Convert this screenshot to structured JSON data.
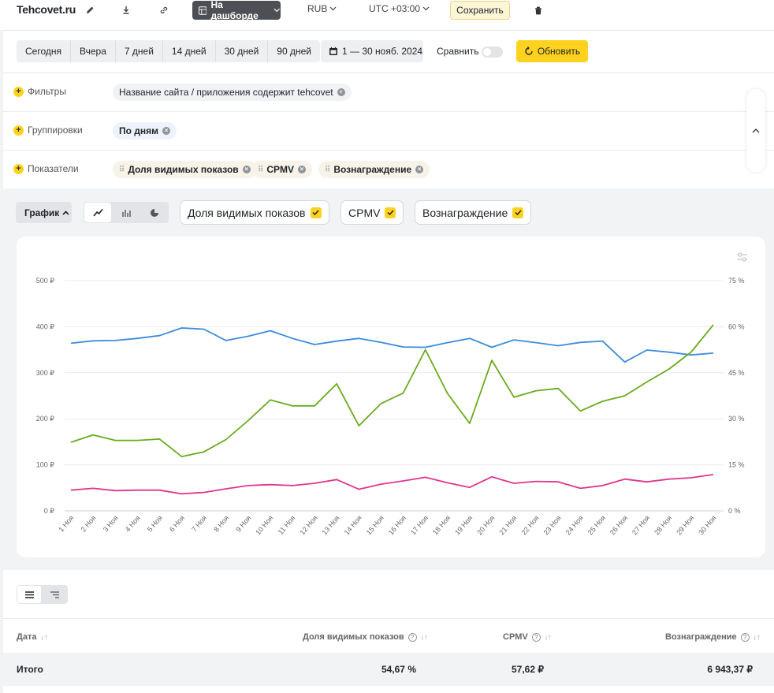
{
  "topbar": {
    "site_title": "Tehcovet.ru",
    "dashboard_label": "На дашборде",
    "currency": "RUB",
    "timezone": "UTC +03:00",
    "save_label": "Сохранить"
  },
  "period": {
    "presets": [
      "Сегодня",
      "Вчера",
      "7 дней",
      "14 дней",
      "30 дней",
      "90 дней"
    ],
    "date_range": "1 — 30 нояб. 2024",
    "compare_label": "Сравнить",
    "compare_enabled": false,
    "refresh_label": "Обновить"
  },
  "settings": {
    "filters_label": "Фильтры",
    "filter_chip": "Название сайта / приложения содержит tehcovet",
    "groupings_label": "Группировки",
    "grouping_chip": "По дням",
    "metrics_label": "Показатели",
    "metric_chips": [
      "Доля видимых показов",
      "CPMV",
      "Вознаграждение"
    ]
  },
  "chart_controls": {
    "graph_label": "График",
    "metric_toggles": [
      {
        "label": "Доля видимых показов",
        "checked": true
      },
      {
        "label": "CPMV",
        "checked": true
      },
      {
        "label": "Вознаграждение",
        "checked": true
      }
    ]
  },
  "chart_data": {
    "type": "line",
    "x": [
      "1 Ноя",
      "2 Ноя",
      "3 Ноя",
      "4 Ноя",
      "5 Ноя",
      "6 Ноя",
      "7 Ноя",
      "8 Ноя",
      "9 Ноя",
      "10 Ноя",
      "11 Ноя",
      "12 Ноя",
      "13 Ноя",
      "14 Ноя",
      "15 Ноя",
      "16 Ноя",
      "17 Ноя",
      "18 Ноя",
      "19 Ноя",
      "20 Ноя",
      "21 Ноя",
      "22 Ноя",
      "23 Ноя",
      "24 Ноя",
      "25 Ноя",
      "26 Ноя",
      "27 Ноя",
      "28 Ноя",
      "29 Ноя",
      "30 Ноя"
    ],
    "left_ticks": [
      "0 ₽",
      "100 ₽",
      "200 ₽",
      "300 ₽",
      "400 ₽",
      "500 ₽"
    ],
    "right_ticks": [
      "0 %",
      "15 %",
      "30 %",
      "45 %",
      "60 %",
      "75 %"
    ],
    "ylim_left": [
      0,
      500
    ],
    "ylim_right": [
      0,
      75
    ],
    "series": [
      {
        "axis": "right",
        "color": "#3d8bdb",
        "values": [
          54.6,
          55.4,
          55.5,
          56.2,
          57.1,
          59.6,
          59.2,
          55.5,
          56.9,
          58.7,
          56.2,
          54.2,
          55.3,
          56.2,
          54.9,
          53.4,
          53.3,
          54.8,
          56.2,
          53.3,
          55.7,
          54.8,
          53.8,
          54.9,
          55.3,
          48.5,
          52.4,
          51.7,
          50.8,
          51.4
        ]
      },
      {
        "axis": "left",
        "color": "#6aaa1e",
        "values": [
          149,
          165,
          153,
          153,
          156,
          118,
          128,
          155,
          196,
          241,
          228,
          228,
          276,
          185,
          233,
          256,
          350,
          255,
          190,
          327,
          247,
          261,
          266,
          217,
          238,
          250,
          280,
          308,
          345,
          404
        ]
      },
      {
        "axis": "left",
        "color": "#e0358c",
        "values": [
          45,
          49,
          44,
          45,
          45,
          37,
          40,
          48,
          55,
          57,
          55,
          60,
          68,
          47,
          58,
          65,
          73,
          61,
          51,
          74,
          60,
          64,
          63,
          49,
          55,
          69,
          63,
          69,
          72,
          79
        ]
      }
    ],
    "grid": true
  },
  "table": {
    "columns": [
      {
        "label": "Дата"
      },
      {
        "label": "Доля видимых показов"
      },
      {
        "label": "CPMV"
      },
      {
        "label": "Вознаграждение"
      }
    ],
    "total": {
      "label": "Итого",
      "visible_share": "54,67 %",
      "cpmv": "57,62 ₽",
      "reward": "6 943,37 ₽"
    }
  }
}
